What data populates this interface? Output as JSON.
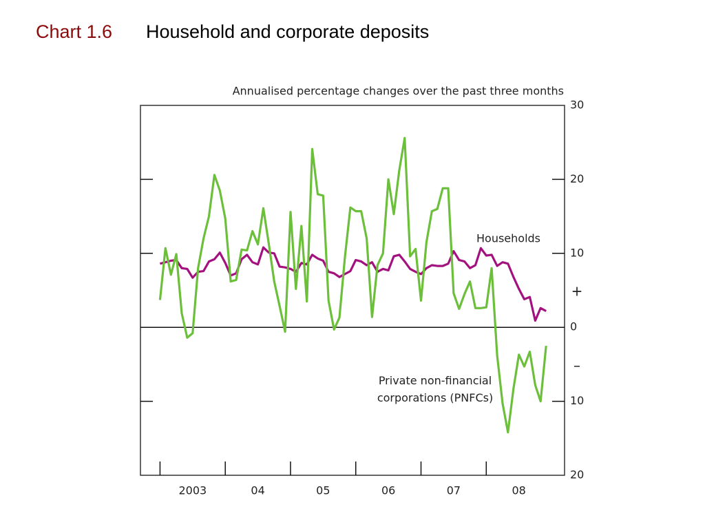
{
  "chart_data": {
    "type": "line",
    "chart_label": "Chart 1.6",
    "title": "Household and corporate deposits",
    "subtitle": "Annualised percentage changes over the past three months",
    "sign_labels": [
      "+",
      "–"
    ],
    "x": [
      2003,
      2003.083,
      2003.167,
      2003.25,
      2003.333,
      2003.417,
      2003.5,
      2003.583,
      2003.667,
      2003.75,
      2003.833,
      2003.917,
      2004,
      2004.083,
      2004.167,
      2004.25,
      2004.333,
      2004.417,
      2004.5,
      2004.583,
      2004.667,
      2004.75,
      2004.833,
      2004.917,
      2005,
      2005.083,
      2005.167,
      2005.25,
      2005.333,
      2005.417,
      2005.5,
      2005.583,
      2005.667,
      2005.75,
      2005.833,
      2005.917,
      2006,
      2006.083,
      2006.167,
      2006.25,
      2006.333,
      2006.417,
      2006.5,
      2006.583,
      2006.667,
      2006.75,
      2006.833,
      2006.917,
      2007,
      2007.083,
      2007.167,
      2007.25,
      2007.333,
      2007.417,
      2007.5,
      2007.583,
      2007.667,
      2007.75,
      2007.833,
      2007.917,
      2008,
      2008.083,
      2008.167,
      2008.25,
      2008.333,
      2008.417,
      2008.5,
      2008.583,
      2008.667,
      2008.75,
      2008.833,
      2008.917
    ],
    "series": [
      {
        "name": "Households",
        "color": "#a3117f",
        "values": [
          8.6,
          8.8,
          9.0,
          9.1,
          8.0,
          7.9,
          6.7,
          7.5,
          7.6,
          8.9,
          9.2,
          10.1,
          8.7,
          7.0,
          7.3,
          9.2,
          9.8,
          8.8,
          8.5,
          10.8,
          10.1,
          10.0,
          8.2,
          8.1,
          7.9,
          7.5,
          8.7,
          8.5,
          9.8,
          9.3,
          9.0,
          7.5,
          7.3,
          6.8,
          7.2,
          7.6,
          9.1,
          8.9,
          8.4,
          8.8,
          7.5,
          7.9,
          7.7,
          9.6,
          9.8,
          8.9,
          7.9,
          7.5,
          7.2,
          8.0,
          8.4,
          8.3,
          8.3,
          8.6,
          10.3,
          9.1,
          8.9,
          8.0,
          8.4,
          10.7,
          9.7,
          9.8,
          8.3,
          8.8,
          8.6,
          6.8,
          5.2,
          3.8,
          4.1,
          0.9,
          2.6,
          2.2
        ]
      },
      {
        "name": "Private non-financial corporations (PNFCs)",
        "color": "#6cbf3a",
        "values": [
          3.7,
          10.7,
          7.1,
          9.9,
          1.9,
          -1.4,
          -0.8,
          8.0,
          12.0,
          15.0,
          20.6,
          18.5,
          14.7,
          6.2,
          6.4,
          10.5,
          10.4,
          13.0,
          11.2,
          16.1,
          11.3,
          6.2,
          2.9,
          -0.6,
          15.6,
          5.2,
          13.7,
          3.5,
          24.1,
          18.0,
          17.8,
          3.6,
          -0.3,
          1.3,
          9.4,
          16.2,
          15.7,
          15.7,
          12.0,
          1.4,
          8.4,
          10.0,
          20.0,
          15.3,
          21.2,
          25.6,
          9.6,
          10.6,
          3.6,
          11.5,
          15.7,
          16.0,
          18.8,
          18.8,
          4.6,
          2.5,
          4.5,
          6.2,
          2.6,
          2.6,
          2.7,
          8.0,
          -3.8,
          -10.3,
          -14.2,
          -8.3,
          -3.7,
          -5.3,
          -3.3,
          -7.8,
          -10.0,
          -2.5
        ]
      }
    ],
    "xlim": [
      2002.7,
      2009.2
    ],
    "xticks": [
      {
        "value": 2003,
        "label": "2003"
      },
      {
        "value": 2004,
        "label": "04"
      },
      {
        "value": 2005,
        "label": "05"
      },
      {
        "value": 2006,
        "label": "06"
      },
      {
        "value": 2007,
        "label": "07"
      },
      {
        "value": 2008,
        "label": "08"
      }
    ],
    "ylim": [
      -20,
      30
    ],
    "yticks": [
      30,
      20,
      10,
      0,
      {
        "value": -10,
        "label": "10"
      },
      {
        "value": -20,
        "label": "20"
      }
    ]
  }
}
